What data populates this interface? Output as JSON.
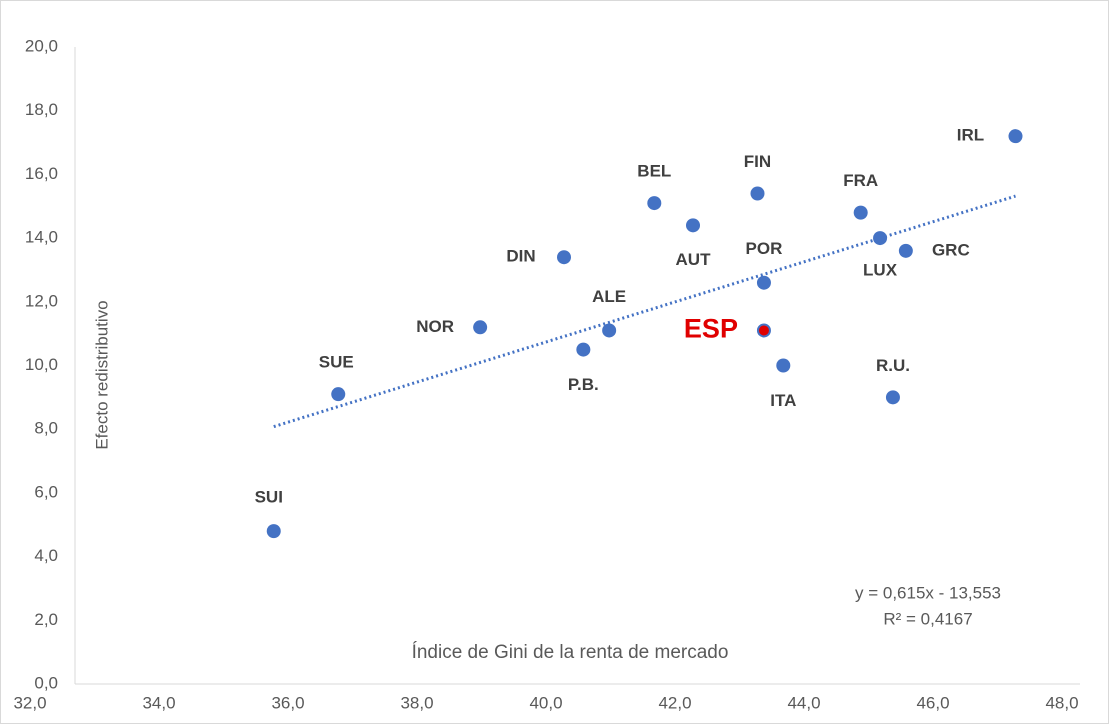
{
  "chart_data": {
    "type": "scatter",
    "ylabel": "Efecto redistributivo",
    "xlabel": "Índice de Gini de la renta de mercado",
    "annotations": [
      "y = 0,615x - 13,553",
      "R² = 0,4167"
    ],
    "trendline": true,
    "series": [
      {
        "labels": [
          "SUI",
          "SUE",
          "NOR",
          "DIN",
          "P.B.",
          "ALE",
          "BEL",
          "AUT",
          "FIN",
          "POR",
          "ESP",
          "ITA",
          "FRA",
          "LUX",
          "GRC",
          "R.U.",
          "IRL"
        ],
        "x": [
          35.5,
          36.5,
          38.7,
          40.0,
          40.3,
          40.7,
          41.4,
          42.0,
          43.0,
          43.1,
          43.1,
          43.4,
          44.6,
          44.9,
          45.3,
          45.1,
          47.0
        ],
        "values": [
          4.8,
          9.1,
          11.2,
          13.4,
          10.5,
          11.1,
          15.1,
          14.4,
          15.4,
          12.6,
          11.1,
          10.0,
          14.8,
          14.0,
          13.6,
          9.0,
          17.2
        ],
        "color": "#4472c4",
        "highlight": {
          "index": 10,
          "color": "#e00000"
        }
      }
    ],
    "xlim": [
      32,
      48
    ],
    "xticks": [
      {
        "value": 32,
        "label": "32,0"
      },
      {
        "value": 34,
        "label": "34,0"
      },
      {
        "value": 36,
        "label": "36,0"
      },
      {
        "value": 38,
        "label": "38,0"
      },
      {
        "value": 40,
        "label": "40,0"
      },
      {
        "value": 42,
        "label": "42,0"
      },
      {
        "value": 44,
        "label": "44,0"
      },
      {
        "value": 46,
        "label": "46,0"
      },
      {
        "value": 48,
        "label": "48,0"
      }
    ],
    "ylim": [
      0,
      20
    ],
    "yticks": [
      {
        "value": 0,
        "label": "0,0"
      },
      {
        "value": 2,
        "label": "2,0"
      },
      {
        "value": 4,
        "label": "4,0"
      },
      {
        "value": 6,
        "label": "6,0"
      },
      {
        "value": 8,
        "label": "8,0"
      },
      {
        "value": 10,
        "label": "10,0"
      },
      {
        "value": 12,
        "label": "12,0"
      },
      {
        "value": 14,
        "label": "14,0"
      },
      {
        "value": 16,
        "label": "16,0"
      },
      {
        "value": 18,
        "label": "18,0"
      },
      {
        "value": 20,
        "label": "20,0"
      }
    ]
  }
}
